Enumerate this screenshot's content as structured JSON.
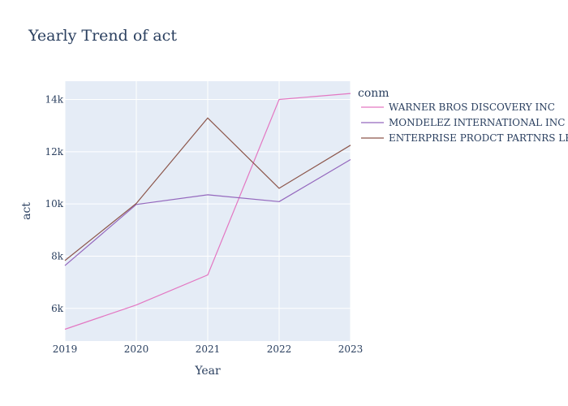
{
  "chart_data": {
    "type": "line",
    "title": "Yearly Trend of act",
    "xlabel": "Year",
    "ylabel": "act",
    "x": [
      2019,
      2020,
      2021,
      2022,
      2023
    ],
    "x_tick_labels": [
      "2019",
      "2020",
      "2021",
      "2022",
      "2023"
    ],
    "xlim": [
      2019,
      2023
    ],
    "y_ticks": [
      6000,
      8000,
      10000,
      12000,
      14000
    ],
    "y_tick_labels": [
      "6k",
      "8k",
      "10k",
      "12k",
      "14k"
    ],
    "ylim": [
      4750,
      14700
    ],
    "grid": true,
    "legend": {
      "title": "conm",
      "placement": "right"
    },
    "plot_background": "#e5ecf6",
    "series": [
      {
        "name": "WARNER BROS DISCOVERY INC",
        "color": "#e377c2",
        "values": [
          5200,
          6130,
          7280,
          14000,
          14230
        ]
      },
      {
        "name": "MONDELEZ INTERNATIONAL INC",
        "color": "#9467bd",
        "values": [
          7640,
          9980,
          10350,
          10090,
          11700
        ]
      },
      {
        "name": "ENTERPRISE PRODCT PARTNRS LP",
        "color": "#8c564b",
        "values": [
          7830,
          10020,
          13290,
          10600,
          12250
        ]
      }
    ]
  }
}
